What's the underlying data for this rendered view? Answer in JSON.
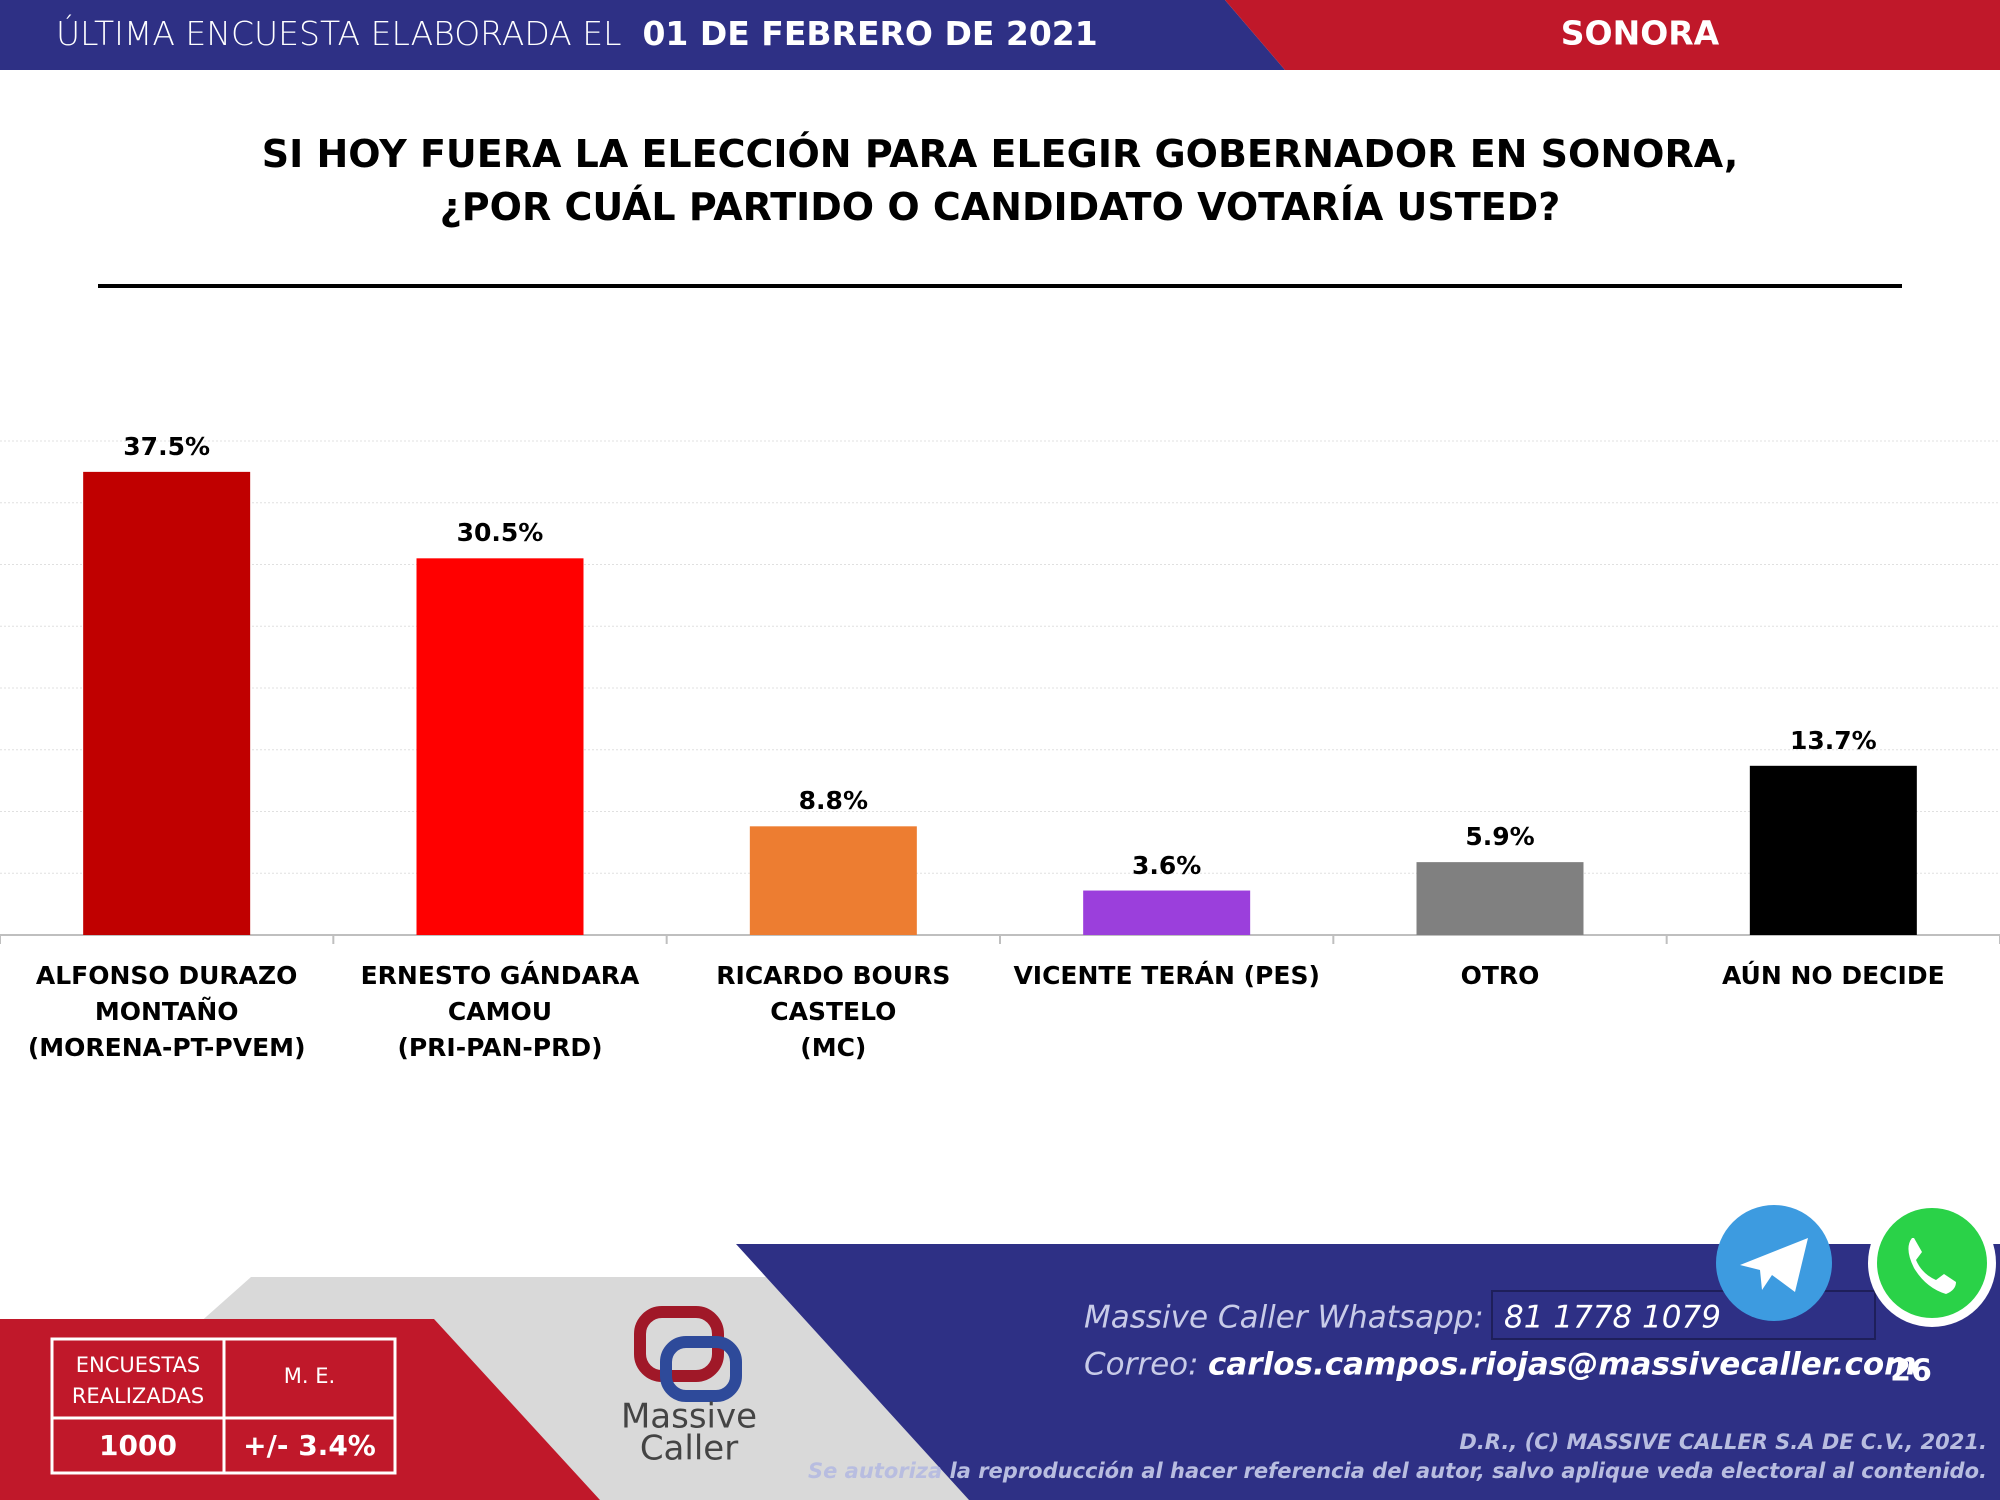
{
  "header": {
    "lead": "ÚLTIMA ENCUESTA ELABORADA EL",
    "date": "01 DE FEBRERO DE 2021",
    "region": "SONORA"
  },
  "chart_data": {
    "type": "bar",
    "title": "SI HOY FUERA LA ELECCIÓN PARA ELEGIR GOBERNADOR EN SONORA,\n¿POR CUÁL PARTIDO O CANDIDATO VOTARÍA USTED?",
    "categories": [
      "ALFONSO DURAZO\nMONTAÑO\n(MORENA-PT-PVEM)",
      "ERNESTO GÁNDARA\nCAMOU\n(PRI-PAN-PRD)",
      "RICARDO BOURS CASTELO\n(MC)",
      "VICENTE TERÁN (PES)",
      "OTRO",
      "AÚN NO DECIDE"
    ],
    "values": [
      37.5,
      30.5,
      8.8,
      3.6,
      5.9,
      13.7
    ],
    "value_labels": [
      "37.5%",
      "30.5%",
      "8.8%",
      "3.6%",
      "5.9%",
      "13.7%"
    ],
    "colors": [
      "#c00000",
      "#ff0000",
      "#ed7d31",
      "#9b3fdc",
      "#808080",
      "#000000"
    ],
    "ylim": [
      0,
      40
    ],
    "yticks": [
      0,
      5,
      10,
      15,
      20,
      25,
      30,
      35,
      40
    ],
    "grid": true
  },
  "footer": {
    "table": {
      "headers": [
        "ENCUESTAS\nREALIZADAS",
        "M. E."
      ],
      "values": [
        "1000",
        "+/- 3.4%"
      ]
    },
    "logo": [
      "Massive",
      "Caller"
    ],
    "whatsapp_label": "Massive Caller Whatsapp:",
    "whatsapp_number": "81 1778 1079",
    "email_label": "Correo:",
    "email": "carlos.campos.riojas@massivecaller.com",
    "page_number": "26",
    "copyright": [
      "D.R., (C) MASSIVE CALLER S.A DE C.V., 2021.",
      "Se autoriza la reproducción al hacer referencia del autor, salvo aplique veda electoral al contenido."
    ]
  }
}
